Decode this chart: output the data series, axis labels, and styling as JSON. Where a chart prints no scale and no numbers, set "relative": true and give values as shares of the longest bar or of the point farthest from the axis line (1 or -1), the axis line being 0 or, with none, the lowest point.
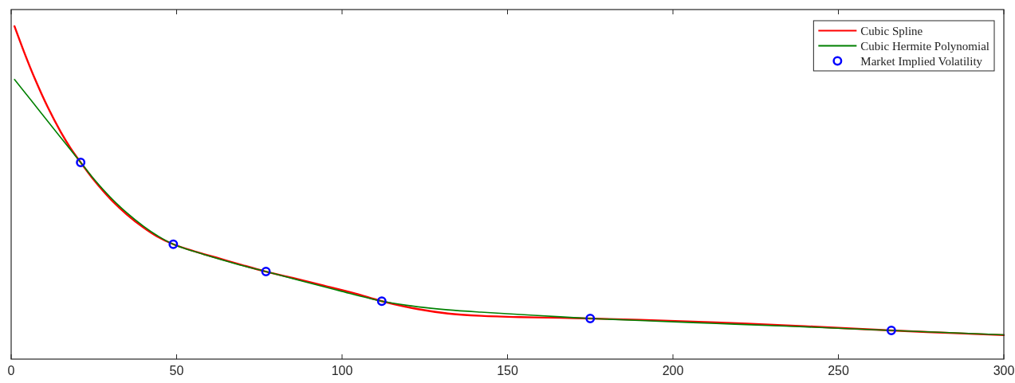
{
  "chart_data": {
    "type": "line",
    "relative": true,
    "xlim": [
      0,
      300
    ],
    "xticks": [
      0,
      50,
      100,
      150,
      200,
      250,
      300
    ],
    "legend": "top right",
    "series": [
      {
        "name": "Cubic Spline",
        "color": "#ff0000",
        "x": [
          1,
          4,
          7,
          11,
          15,
          18,
          21,
          25,
          30,
          35,
          40,
          44,
          49,
          56,
          63,
          70,
          77,
          85,
          94,
          104,
          112,
          123,
          132,
          142,
          154,
          166,
          175,
          190,
          213,
          237,
          256,
          266,
          285,
          300
        ],
        "values": [
          1.0,
          0.92,
          0.846,
          0.758,
          0.682,
          0.633,
          0.591,
          0.538,
          0.481,
          0.434,
          0.395,
          0.369,
          0.345,
          0.322,
          0.302,
          0.282,
          0.263,
          0.244,
          0.222,
          0.197,
          0.174,
          0.15,
          0.137,
          0.13,
          0.126,
          0.124,
          0.122,
          0.118,
          0.11,
          0.1,
          0.091,
          0.086,
          0.078,
          0.072
        ]
      },
      {
        "name": "Cubic Hermite Polynomial",
        "color": "#008000",
        "x": [
          1,
          6,
          11,
          16,
          21,
          25,
          30,
          35,
          40,
          44,
          49,
          59,
          68,
          77,
          87,
          99,
          112,
          123,
          132,
          142,
          154,
          166,
          175,
          190,
          213,
          237,
          266,
          285,
          300
        ],
        "values": [
          0.84,
          0.778,
          0.715,
          0.653,
          0.591,
          0.541,
          0.486,
          0.439,
          0.399,
          0.372,
          0.345,
          0.312,
          0.286,
          0.263,
          0.237,
          0.206,
          0.174,
          0.157,
          0.148,
          0.141,
          0.134,
          0.127,
          0.122,
          0.116,
          0.107,
          0.098,
          0.086,
          0.079,
          0.073
        ]
      },
      {
        "name": "Market Implied Volatility",
        "type": "scatter",
        "color": "#0000ff",
        "marker": "circle",
        "x": [
          21,
          49,
          77,
          112,
          175,
          266
        ],
        "values": [
          0.591,
          0.345,
          0.263,
          0.174,
          0.122,
          0.086
        ]
      }
    ]
  }
}
